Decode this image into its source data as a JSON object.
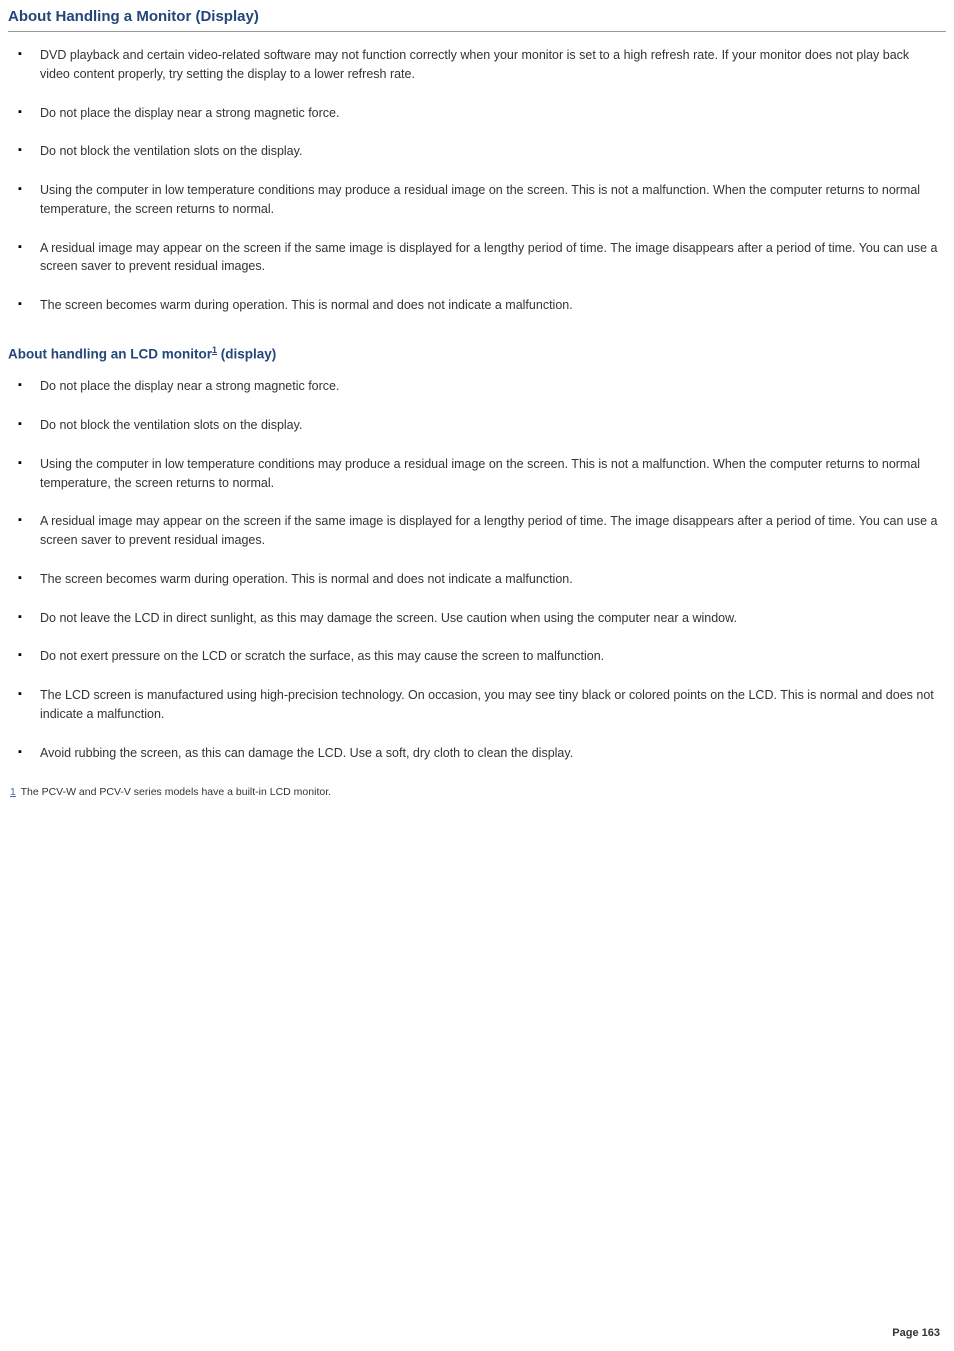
{
  "colors": {
    "heading": "#24467a",
    "body_text": "#333333",
    "rule": "#999999",
    "link": "#4a6aa5",
    "background": "#ffffff",
    "bullet": "#000000"
  },
  "typography": {
    "family": "Verdana",
    "title_size_pt": 11,
    "subtitle_size_pt": 10,
    "body_size_pt": 9.5,
    "footnote_size_pt": 8
  },
  "title": "About Handling a Monitor (Display)",
  "section1_items": [
    "DVD playback and certain video-related software may not function correctly when your monitor is set to a high refresh rate. If your monitor does not play back video content properly, try setting the display to a lower refresh rate.",
    "Do not place the display near a strong magnetic force.",
    "Do not block the ventilation slots on the display.",
    "Using the computer in low temperature conditions may produce a residual image on the screen. This is not a malfunction. When the computer returns to normal temperature, the screen returns to normal.",
    "A residual image may appear on the screen if the same image is displayed for a lengthy period of time. The image disappears after a period of time. You can use a screen saver to prevent residual images.",
    "The screen becomes warm during operation. This is normal and does not indicate a malfunction."
  ],
  "subtitle_pre": "About handling an LCD monitor",
  "subtitle_sup": "1",
  "subtitle_post": " (display)",
  "section2_items": [
    "Do not place the display near a strong magnetic force.",
    "Do not block the ventilation slots on the display.",
    "Using the computer in low temperature conditions may produce a residual image on the screen. This is not a malfunction. When the computer returns to normal temperature, the screen returns to normal.",
    "A residual image may appear on the screen if the same image is displayed for a lengthy period of time. The image disappears after a period of time. You can use a screen saver to prevent residual images.",
    "The screen becomes warm during operation. This is normal and does not indicate a malfunction.",
    "Do not leave the LCD in direct sunlight, as this may damage the screen. Use caution when using the computer near a window.",
    "Do not exert pressure on the LCD or scratch the surface, as this may cause the screen to malfunction.",
    "The LCD screen is manufactured using high-precision technology. On occasion, you may see tiny black or colored points on the LCD. This is normal and does not indicate a malfunction.",
    "Avoid rubbing the screen, as this can damage the LCD. Use a soft, dry cloth to clean the display."
  ],
  "footnote_num": "1",
  "footnote_text": " The PCV-W and PCV-V series models have a built-in LCD monitor.",
  "page_number": "Page 163"
}
